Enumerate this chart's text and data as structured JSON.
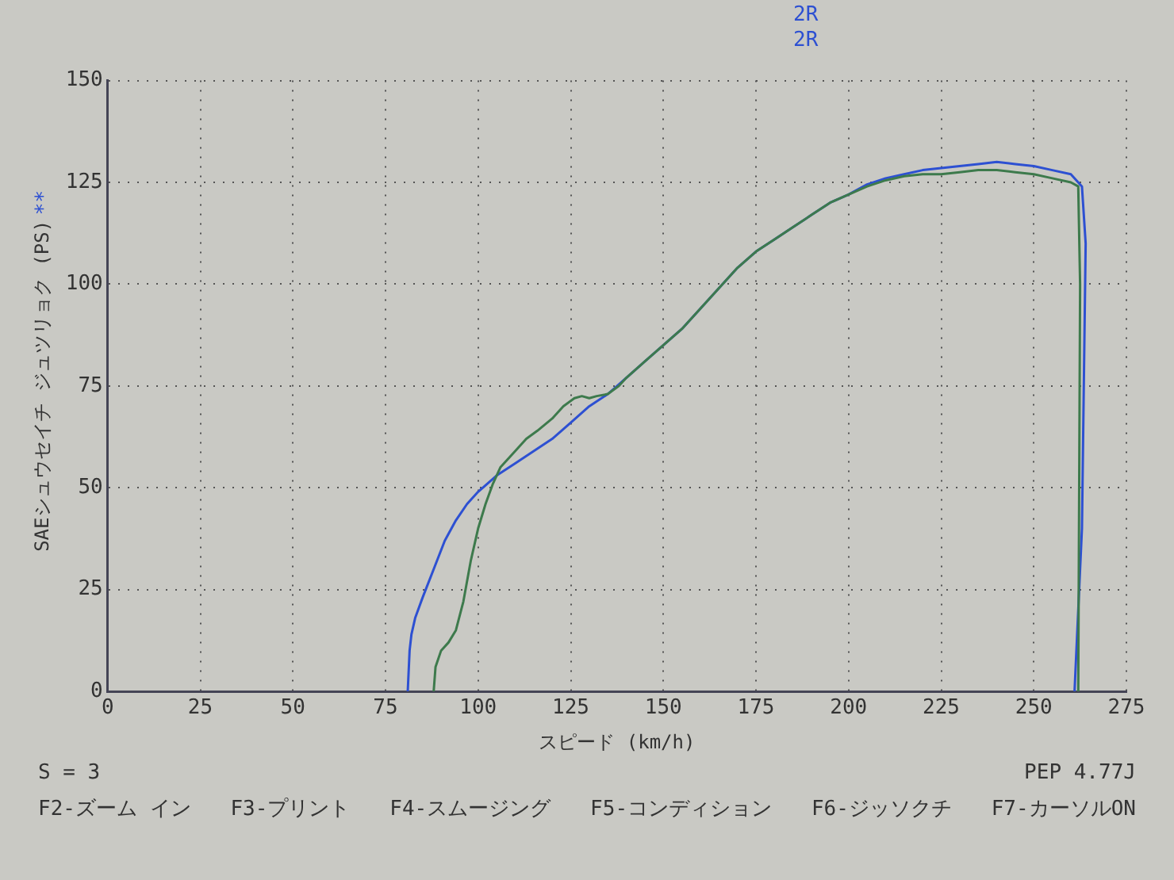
{
  "chart_data": {
    "type": "line",
    "xlabel": "スピード (km/h)",
    "ylabel": "SAEシュウセイチ ジュツリョク (PS)",
    "annotations": [
      "2R",
      "2R",
      "**",
      "S = 3",
      "PEP 4.77J",
      "F2-ズーム イン",
      "F3-プリント",
      "F4-スムージング",
      "F5-コンディション",
      "F6-ジッソクチ",
      "F7-カーソルON"
    ],
    "series": [
      {
        "color": "#3d7a4c",
        "x": [
          88,
          88.5,
          90,
          92,
          94,
          96,
          98,
          100,
          102,
          104,
          106,
          108,
          110,
          113,
          116,
          120,
          123,
          126,
          128,
          130,
          132,
          135,
          138,
          140,
          145,
          150,
          155,
          160,
          165,
          170,
          175,
          180,
          185,
          190,
          195,
          200,
          205,
          210,
          215,
          220,
          225,
          230,
          235,
          240,
          245,
          250,
          255,
          260,
          262,
          262.5,
          262
        ],
        "values": [
          0,
          6,
          10,
          12,
          15,
          22,
          32,
          40,
          46,
          51,
          55,
          57,
          59,
          62,
          64,
          67,
          70,
          72,
          72.5,
          72,
          72.5,
          73,
          75,
          77,
          81,
          85,
          89,
          94,
          99,
          104,
          108,
          111,
          114,
          117,
          120,
          122,
          124,
          125.5,
          126.5,
          127,
          127,
          127.5,
          128,
          128,
          127.5,
          127,
          126,
          125,
          124,
          100,
          0
        ]
      },
      {
        "color": "#2d50d2",
        "x": [
          81,
          81.5,
          82,
          83,
          85,
          88,
          91,
          94,
          97,
          100,
          105,
          110,
          115,
          120,
          125,
          130,
          135,
          140,
          145,
          150,
          155,
          160,
          165,
          170,
          175,
          180,
          185,
          190,
          195,
          200,
          205,
          210,
          215,
          220,
          225,
          230,
          235,
          240,
          245,
          250,
          255,
          260,
          263,
          264,
          263,
          261
        ],
        "values": [
          0,
          10,
          14,
          18,
          23,
          30,
          37,
          42,
          46,
          49,
          53,
          56,
          59,
          62,
          66,
          70,
          73,
          77,
          81,
          85,
          89,
          94,
          99,
          104,
          108,
          111,
          114,
          117,
          120,
          122,
          124.5,
          126,
          127,
          128,
          128.5,
          129,
          129.5,
          130,
          129.5,
          129,
          128,
          127,
          124,
          110,
          40,
          0
        ]
      }
    ],
    "xlim": [
      0,
      275
    ],
    "xticks": [
      0,
      25,
      50,
      75,
      100,
      125,
      150,
      175,
      200,
      225,
      250,
      275
    ],
    "ylim": [
      0,
      150
    ],
    "yticks": [
      0,
      25,
      50,
      75,
      100,
      125,
      150
    ],
    "grid": true,
    "legend": false,
    "marker": "none",
    "line_style": "solid"
  }
}
